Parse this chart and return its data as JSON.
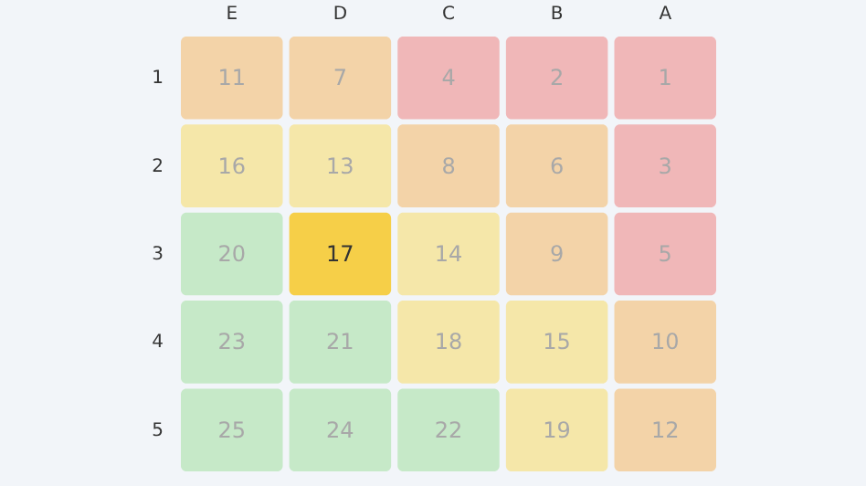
{
  "chart_data": {
    "type": "heatmap",
    "categories": [
      "E",
      "D",
      "C",
      "B",
      "A"
    ],
    "y_categories": [
      "1",
      "2",
      "3",
      "4",
      "5"
    ],
    "cells": [
      [
        11,
        7,
        4,
        2,
        1
      ],
      [
        16,
        13,
        8,
        6,
        3
      ],
      [
        20,
        17,
        14,
        9,
        5
      ],
      [
        23,
        21,
        18,
        15,
        10
      ],
      [
        25,
        24,
        22,
        19,
        12
      ]
    ],
    "colors": [
      [
        "#f3d3a8",
        "#f3d3a8",
        "#f0b7b8",
        "#f0b7b8",
        "#f0b7b8"
      ],
      [
        "#f5e7a9",
        "#f5e7a9",
        "#f3d3a8",
        "#f3d3a8",
        "#f0b7b8"
      ],
      [
        "#c6e9c8",
        "#f6cf48",
        "#f5e7a9",
        "#f3d3a8",
        "#f0b7b8"
      ],
      [
        "#c6e9c8",
        "#c6e9c8",
        "#f5e7a9",
        "#f5e7a9",
        "#f3d3a8"
      ],
      [
        "#c6e9c8",
        "#c6e9c8",
        "#c6e9c8",
        "#f5e7a9",
        "#f3d3a8"
      ]
    ],
    "data_labels": true
  }
}
